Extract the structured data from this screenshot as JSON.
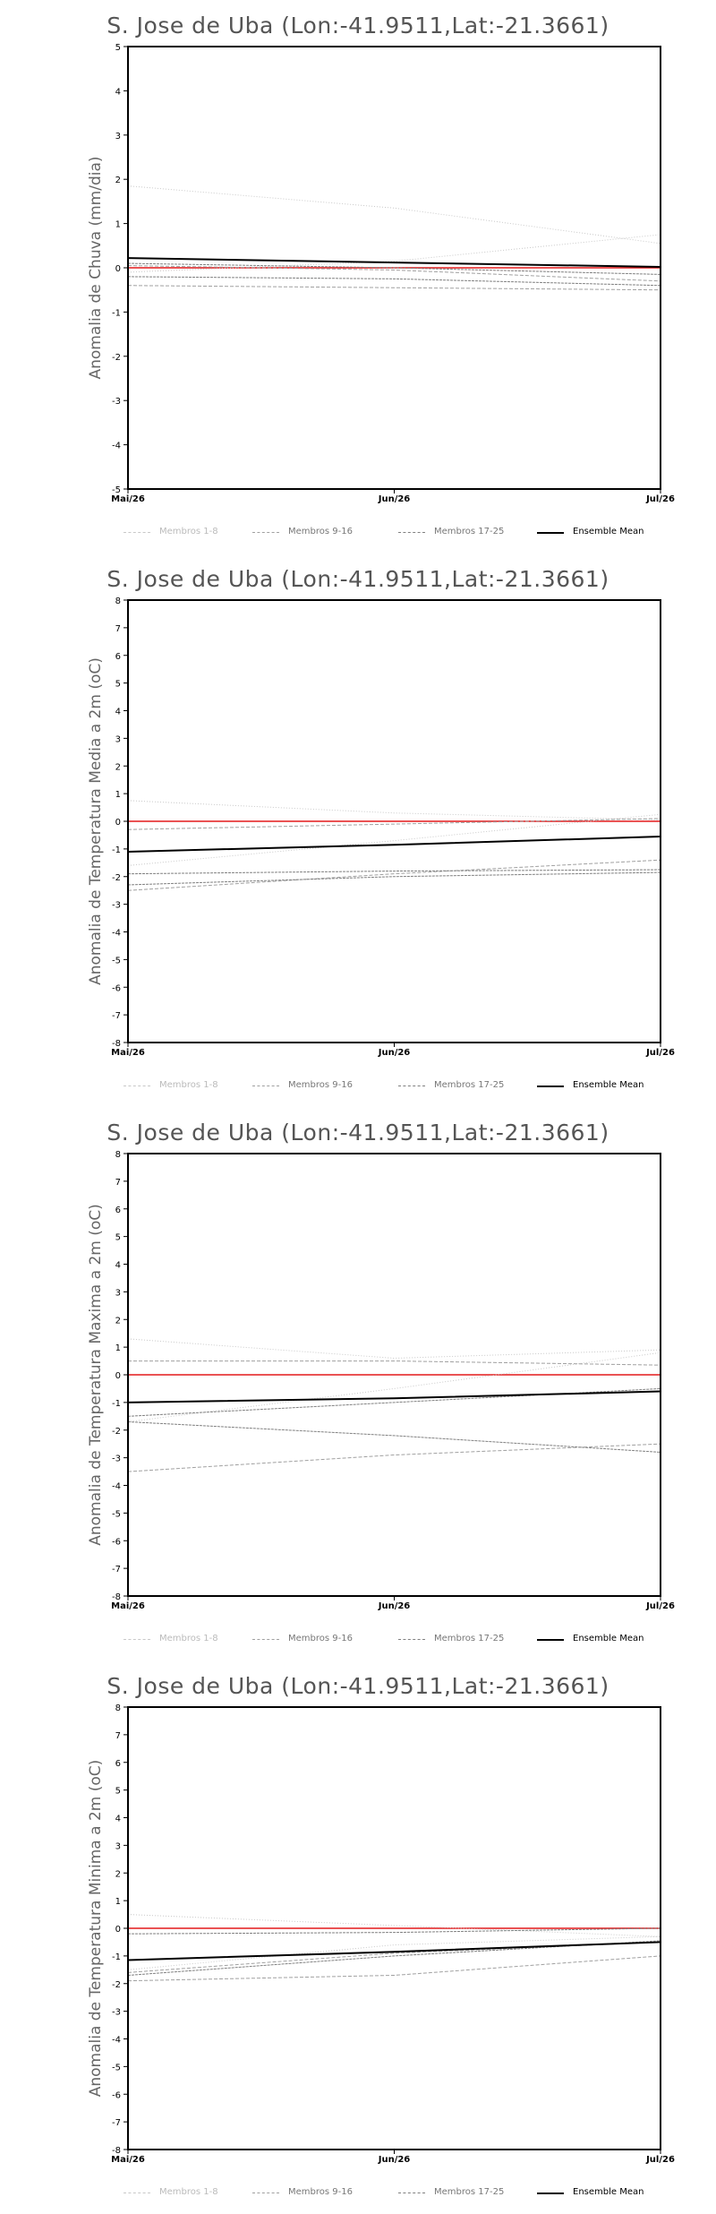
{
  "legend": [
    {
      "label": "Membros 1-8",
      "color": "#c8c8c8",
      "dash": "1,2",
      "width": 1
    },
    {
      "label": "Membros 9-16",
      "color": "#a0a0a0",
      "dash": "4,2",
      "width": 1
    },
    {
      "label": "Membros 17-25",
      "color": "#808080",
      "dash": "3,1",
      "width": 1
    },
    {
      "label": "Ensemble Mean",
      "color": "#000000",
      "dash": "",
      "width": 2
    }
  ],
  "zero_line_color": "#e41a1c",
  "chart_data": [
    {
      "type": "line",
      "title": "S. Jose de Uba (Lon:-41.9511,Lat:-21.3661)",
      "ylabel": "Anomalia de Chuva (mm/dia)",
      "x": [
        "Mai/26",
        "Jun/26",
        "Jul/26"
      ],
      "ylim": [
        -5,
        5
      ],
      "yticks": [
        -5,
        -4,
        -3,
        -2,
        -1,
        0,
        1,
        2,
        3,
        4,
        5
      ],
      "members": [
        {
          "group": 0,
          "values": [
            1.85,
            1.35,
            0.55
          ]
        },
        {
          "group": 0,
          "values": [
            -0.1,
            0.15,
            0.75
          ]
        },
        {
          "group": 1,
          "values": [
            -0.4,
            -0.45,
            -0.5
          ]
        },
        {
          "group": 1,
          "values": [
            0.05,
            -0.05,
            -0.3
          ]
        },
        {
          "group": 2,
          "values": [
            -0.2,
            -0.25,
            -0.4
          ]
        },
        {
          "group": 2,
          "values": [
            0.1,
            0.0,
            -0.15
          ]
        }
      ],
      "ensemble_mean": [
        0.22,
        0.12,
        0.02
      ]
    },
    {
      "type": "line",
      "title": "S. Jose de Uba (Lon:-41.9511,Lat:-21.3661)",
      "ylabel": "Anomalia de Temperatura Media a 2m (oC)",
      "x": [
        "Mai/26",
        "Jun/26",
        "Jul/26"
      ],
      "ylim": [
        -8,
        8
      ],
      "yticks": [
        -8,
        -7,
        -6,
        -5,
        -4,
        -3,
        -2,
        -1,
        0,
        1,
        2,
        3,
        4,
        5,
        6,
        7,
        8
      ],
      "members": [
        {
          "group": 0,
          "values": [
            0.75,
            0.3,
            0.05
          ]
        },
        {
          "group": 0,
          "values": [
            -1.6,
            -0.7,
            0.25
          ]
        },
        {
          "group": 1,
          "values": [
            -2.5,
            -1.9,
            -1.4
          ]
        },
        {
          "group": 1,
          "values": [
            -0.3,
            -0.1,
            0.1
          ]
        },
        {
          "group": 2,
          "values": [
            -2.3,
            -2.0,
            -1.85
          ]
        },
        {
          "group": 2,
          "values": [
            -1.9,
            -1.8,
            -1.75
          ]
        }
      ],
      "ensemble_mean": [
        -1.1,
        -0.85,
        -0.55
      ]
    },
    {
      "type": "line",
      "title": "S. Jose de Uba (Lon:-41.9511,Lat:-21.3661)",
      "ylabel": "Anomalia de Temperatura Maxima a 2m (oC)",
      "x": [
        "Mai/26",
        "Jun/26",
        "Jul/26"
      ],
      "ylim": [
        -8,
        8
      ],
      "yticks": [
        -8,
        -7,
        -6,
        -5,
        -4,
        -3,
        -2,
        -1,
        0,
        1,
        2,
        3,
        4,
        5,
        6,
        7,
        8
      ],
      "members": [
        {
          "group": 0,
          "values": [
            1.3,
            0.6,
            0.9
          ]
        },
        {
          "group": 0,
          "values": [
            -1.7,
            -0.5,
            0.8
          ]
        },
        {
          "group": 1,
          "values": [
            -3.5,
            -2.9,
            -2.5
          ]
        },
        {
          "group": 1,
          "values": [
            0.5,
            0.5,
            0.35
          ]
        },
        {
          "group": 2,
          "values": [
            -1.7,
            -2.2,
            -2.8
          ]
        },
        {
          "group": 2,
          "values": [
            -1.5,
            -1.0,
            -0.5
          ]
        }
      ],
      "ensemble_mean": [
        -1.0,
        -0.85,
        -0.6
      ]
    },
    {
      "type": "line",
      "title": "S. Jose de Uba (Lon:-41.9511,Lat:-21.3661)",
      "ylabel": "Anomalia de Temperatura Minima a 2m (oC)",
      "x": [
        "Mai/26",
        "Jun/26",
        "Jul/26"
      ],
      "ylim": [
        -8,
        8
      ],
      "yticks": [
        -8,
        -7,
        -6,
        -5,
        -4,
        -3,
        -2,
        -1,
        0,
        1,
        2,
        3,
        4,
        5,
        6,
        7,
        8
      ],
      "members": [
        {
          "group": 0,
          "values": [
            0.5,
            0.1,
            -0.3
          ]
        },
        {
          "group": 0,
          "values": [
            -1.5,
            -0.6,
            -0.3
          ]
        },
        {
          "group": 1,
          "values": [
            -1.9,
            -1.7,
            -1.0
          ]
        },
        {
          "group": 1,
          "values": [
            -1.6,
            -0.9,
            -0.5
          ]
        },
        {
          "group": 2,
          "values": [
            -1.7,
            -1.0,
            -0.45
          ]
        },
        {
          "group": 2,
          "values": [
            -0.2,
            -0.15,
            0.0
          ]
        }
      ],
      "ensemble_mean": [
        -1.15,
        -0.85,
        -0.5
      ]
    }
  ]
}
